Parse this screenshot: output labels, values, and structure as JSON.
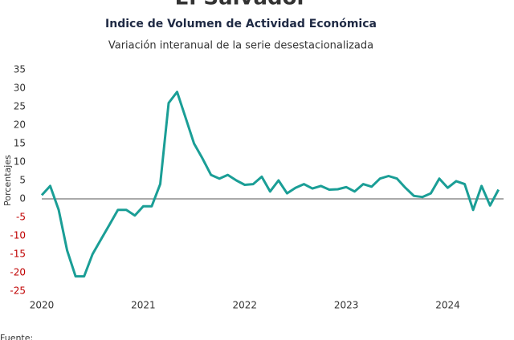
{
  "header": {
    "title": "El Salvador",
    "subtitle": "Indice de Volumen de  Actividad Económica",
    "caption": "Variación interanual de la serie desestacionalizada"
  },
  "chart_data": {
    "type": "line",
    "y_label": "Porcentajes",
    "x": [
      2020.0,
      2020.083,
      2020.167,
      2020.25,
      2020.333,
      2020.417,
      2020.5,
      2020.583,
      2020.667,
      2020.75,
      2020.833,
      2020.917,
      2021.0,
      2021.083,
      2021.167,
      2021.25,
      2021.333,
      2021.417,
      2021.5,
      2021.583,
      2021.667,
      2021.75,
      2021.833,
      2021.917,
      2022.0,
      2022.083,
      2022.167,
      2022.25,
      2022.333,
      2022.417,
      2022.5,
      2022.583,
      2022.667,
      2022.75,
      2022.833,
      2022.917,
      2023.0,
      2023.083,
      2023.167,
      2023.25,
      2023.333,
      2023.417,
      2023.5,
      2023.583,
      2023.667,
      2023.75,
      2023.833,
      2023.917,
      2024.0,
      2024.083,
      2024.167,
      2024.25,
      2024.333,
      2024.417,
      2024.5
    ],
    "series": [
      {
        "name": "Variación interanual",
        "color": "#1a9e96",
        "values": [
          1,
          3.5,
          -3,
          -14,
          -21,
          -21,
          -15,
          -11,
          -7,
          -3,
          -3,
          -4.5,
          -2,
          -2,
          4,
          26,
          29,
          22,
          15,
          11,
          6.5,
          5.5,
          6.5,
          5,
          3.8,
          4,
          6,
          2,
          5,
          1.5,
          3,
          4,
          2.8,
          3.5,
          2.5,
          2.6,
          3.2,
          2,
          4,
          3.3,
          5.5,
          6.2,
          5.5,
          3,
          0.8,
          0.5,
          1.5,
          5.5,
          3,
          4.8,
          4,
          -3,
          3.5,
          -1.8,
          2.5
        ]
      }
    ],
    "xlim": [
      2020,
      2024.55
    ],
    "xticks": [
      2020,
      2021,
      2022,
      2023,
      2024
    ],
    "ylim": [
      -25,
      35
    ],
    "yticks": [
      -25,
      -20,
      -15,
      -10,
      -5,
      0,
      5,
      10,
      15,
      20,
      25,
      30,
      35
    ],
    "negative_tick_color": "#c00000",
    "zero_line": true
  },
  "footer": {
    "source": "Fuente:"
  }
}
